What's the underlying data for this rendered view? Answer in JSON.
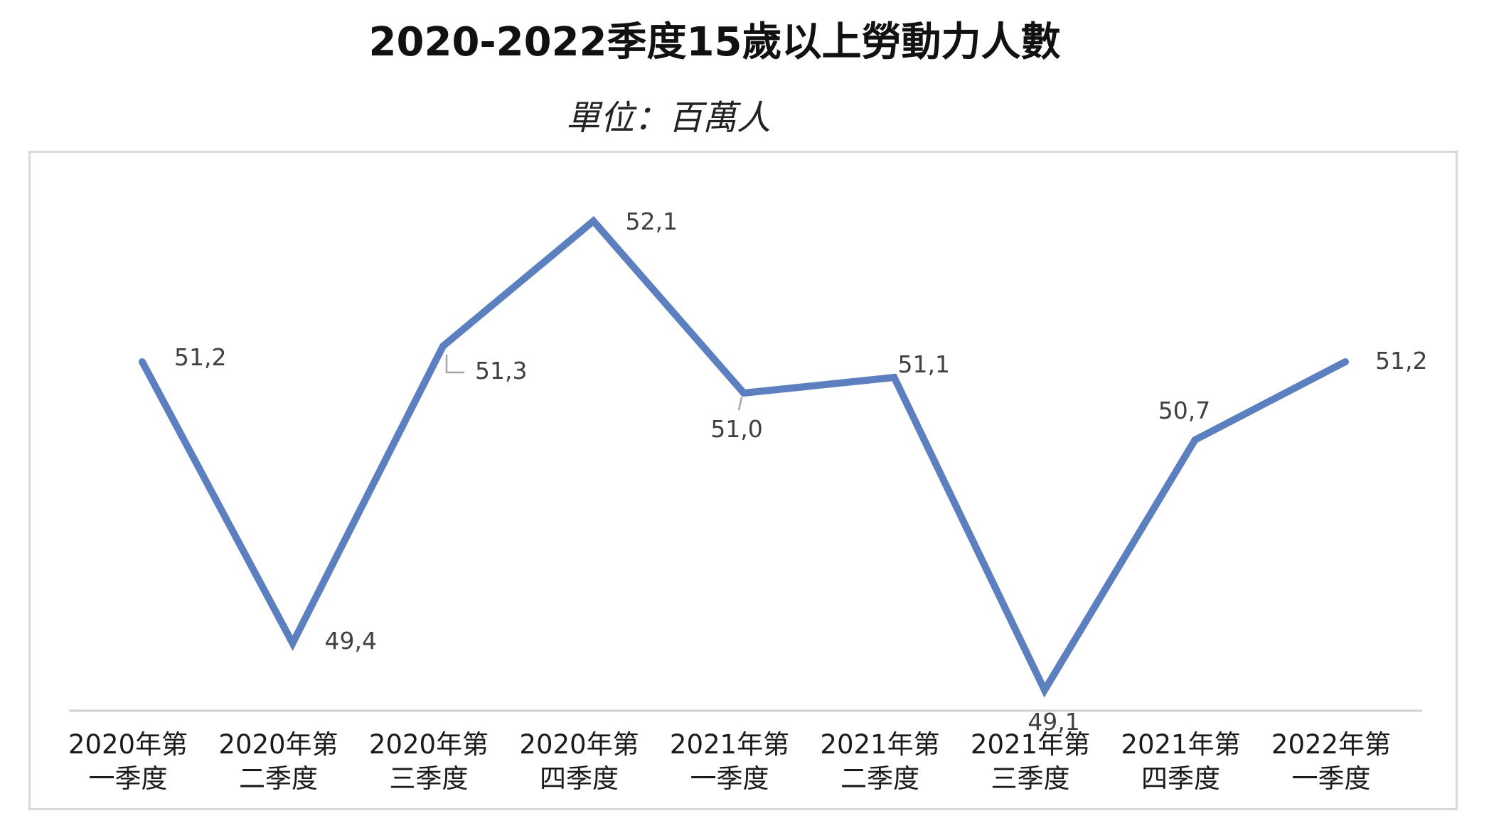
{
  "title": "2020-2022季度15歲以上勞動力人數",
  "subtitle": "單位：百萬人",
  "colors": {
    "line": "#5b7fbf",
    "axis": "#d0d0d0",
    "label": "#404040",
    "leader": "#a6a6a6"
  },
  "chart_data": {
    "type": "line",
    "title": "2020-2022季度15歲以上勞動力人數",
    "subtitle": "單位：百萬人",
    "xlabel": "",
    "ylabel": "",
    "grid": false,
    "legend": "none",
    "ylim": [
      48.0,
      52.6
    ],
    "categories": [
      [
        "2020年第",
        "一季度"
      ],
      [
        "2020年第",
        "二季度"
      ],
      [
        "2020年第",
        "三季度"
      ],
      [
        "2020年第",
        "四季度"
      ],
      [
        "2021年第",
        "一季度"
      ],
      [
        "2021年第",
        "二季度"
      ],
      [
        "2021年第",
        "三季度"
      ],
      [
        "2021年第",
        "四季度"
      ],
      [
        "2022年第",
        "一季度"
      ]
    ],
    "series": [
      {
        "values": [
          51.2,
          49.4,
          51.3,
          52.1,
          51.0,
          51.1,
          49.1,
          50.7,
          51.2
        ]
      }
    ],
    "data_labels": [
      "51,2",
      "49,4",
      "51,3",
      "52,1",
      "51,0",
      "51,1",
      "49,1",
      "50,7",
      "51,2"
    ]
  }
}
